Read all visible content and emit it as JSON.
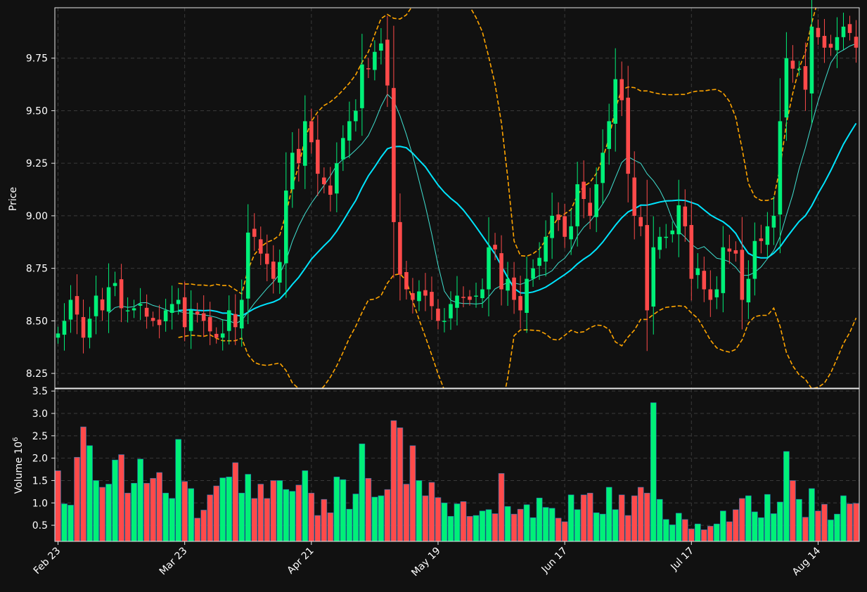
{
  "chart_data": [
    {
      "panel": "price",
      "type": "candlestick",
      "ylabel": "Price",
      "ylim": [
        8.18,
        9.99
      ],
      "yticks": [
        "8.25",
        "8.50",
        "8.75",
        "9.00",
        "9.25",
        "9.50",
        "9.75"
      ],
      "ytick_values": [
        8.25,
        8.5,
        8.75,
        9.0,
        9.25,
        9.5,
        9.75
      ],
      "xticks": [
        "Feb 23",
        "Mar 23",
        "Apr 21",
        "May 19",
        "Jun 17",
        "Jul 17",
        "Aug 14"
      ],
      "xtick_index": [
        0,
        20,
        40,
        60,
        80,
        100,
        120
      ],
      "grid": true,
      "n": 127,
      "closes": [
        8.44,
        8.5,
        8.6,
        8.53,
        8.42,
        8.51,
        8.62,
        8.55,
        8.66,
        8.68,
        8.56,
        8.55,
        8.56,
        8.58,
        8.52,
        8.5,
        8.48,
        8.55,
        8.58,
        8.6,
        8.47,
        8.55,
        8.53,
        8.5,
        8.45,
        8.42,
        8.44,
        8.55,
        8.47,
        8.6,
        8.92,
        8.9,
        8.82,
        8.77,
        8.7,
        8.78,
        9.12,
        9.3,
        9.25,
        9.45,
        9.35,
        9.2,
        9.15,
        9.1,
        9.25,
        9.37,
        9.45,
        9.5,
        9.72,
        9.7,
        9.78,
        9.82,
        9.62,
        8.97,
        8.72,
        8.65,
        8.6,
        8.64,
        8.62,
        8.57,
        8.5,
        8.5,
        8.58,
        8.62,
        8.61,
        8.6,
        8.62,
        8.65,
        8.85,
        8.84,
        8.65,
        8.7,
        8.6,
        8.55,
        8.7,
        8.75,
        8.8,
        8.9,
        9.0,
        8.98,
        8.9,
        8.95,
        9.15,
        9.08,
        9.0,
        9.15,
        9.3,
        9.45,
        9.65,
        9.55,
        9.2,
        9.0,
        8.95,
        8.55,
        8.85,
        8.9,
        8.9,
        8.93,
        9.05,
        8.95,
        8.7,
        8.75,
        8.65,
        8.6,
        8.65,
        8.85,
        8.83,
        8.82,
        8.6,
        8.7,
        8.88,
        8.88,
        8.95,
        9.0,
        9.45,
        9.75,
        9.7,
        9.7,
        9.6,
        9.9,
        9.85,
        9.8,
        9.8,
        9.85,
        9.9,
        9.87,
        9.8
      ],
      "moving_average_fast_color": "#40e0d0",
      "moving_average_slow_color": "#00e5ff",
      "bands_color": "#ffa500",
      "up_color": "#00f078",
      "down_color": "#ff4a4a"
    },
    {
      "panel": "volume",
      "type": "bar",
      "ylabel": "Volume  10",
      "ylabel_exponent": "6",
      "ylim": [
        0.14,
        3.55
      ],
      "yticks": [
        "0.5",
        "1.0",
        "1.5",
        "2.0",
        "2.5",
        "3.0",
        "3.5"
      ],
      "ytick_values": [
        0.5,
        1.0,
        1.5,
        2.0,
        2.5,
        3.0,
        3.5
      ],
      "grid": true,
      "values": [
        1.72,
        0.98,
        0.95,
        2.02,
        2.7,
        2.28,
        1.5,
        1.35,
        1.42,
        1.96,
        2.08,
        1.22,
        1.44,
        1.98,
        1.44,
        1.55,
        1.68,
        1.22,
        1.1,
        2.42,
        1.48,
        1.32,
        0.66,
        0.84,
        1.18,
        1.38,
        1.56,
        1.58,
        1.9,
        1.22,
        1.64,
        1.1,
        1.42,
        1.1,
        1.5,
        1.5,
        1.3,
        1.26,
        1.4,
        1.72,
        1.22,
        0.72,
        1.08,
        0.78,
        1.58,
        1.52,
        0.86,
        1.2,
        2.32,
        1.55,
        1.13,
        1.16,
        1.3,
        2.84,
        2.68,
        1.42,
        2.28,
        1.5,
        1.16,
        1.46,
        1.12,
        1.0,
        0.7,
        0.98,
        1.03,
        0.7,
        0.72,
        0.82,
        0.85,
        0.76,
        1.66,
        0.92,
        0.75,
        0.86,
        0.96,
        0.67,
        1.11,
        0.9,
        0.88,
        0.66,
        0.58,
        1.18,
        0.85,
        1.18,
        1.22,
        0.78,
        0.75,
        1.35,
        0.85,
        1.18,
        0.72,
        1.16,
        1.35,
        1.22,
        3.24,
        1.08,
        0.63,
        0.51,
        0.77,
        0.63,
        0.42,
        0.53,
        0.4,
        0.48,
        0.53,
        0.82,
        0.58,
        0.85,
        1.1,
        1.16,
        0.8,
        0.67,
        1.19,
        0.76,
        1.02,
        2.15,
        1.5,
        1.08,
        0.68,
        1.32,
        0.82,
        0.97,
        0.62,
        0.75,
        1.16,
        0.98,
        0.99
      ]
    }
  ],
  "axes": {
    "price_label": "Price",
    "volume_label": "Volume  10",
    "volume_exponent": "6"
  }
}
